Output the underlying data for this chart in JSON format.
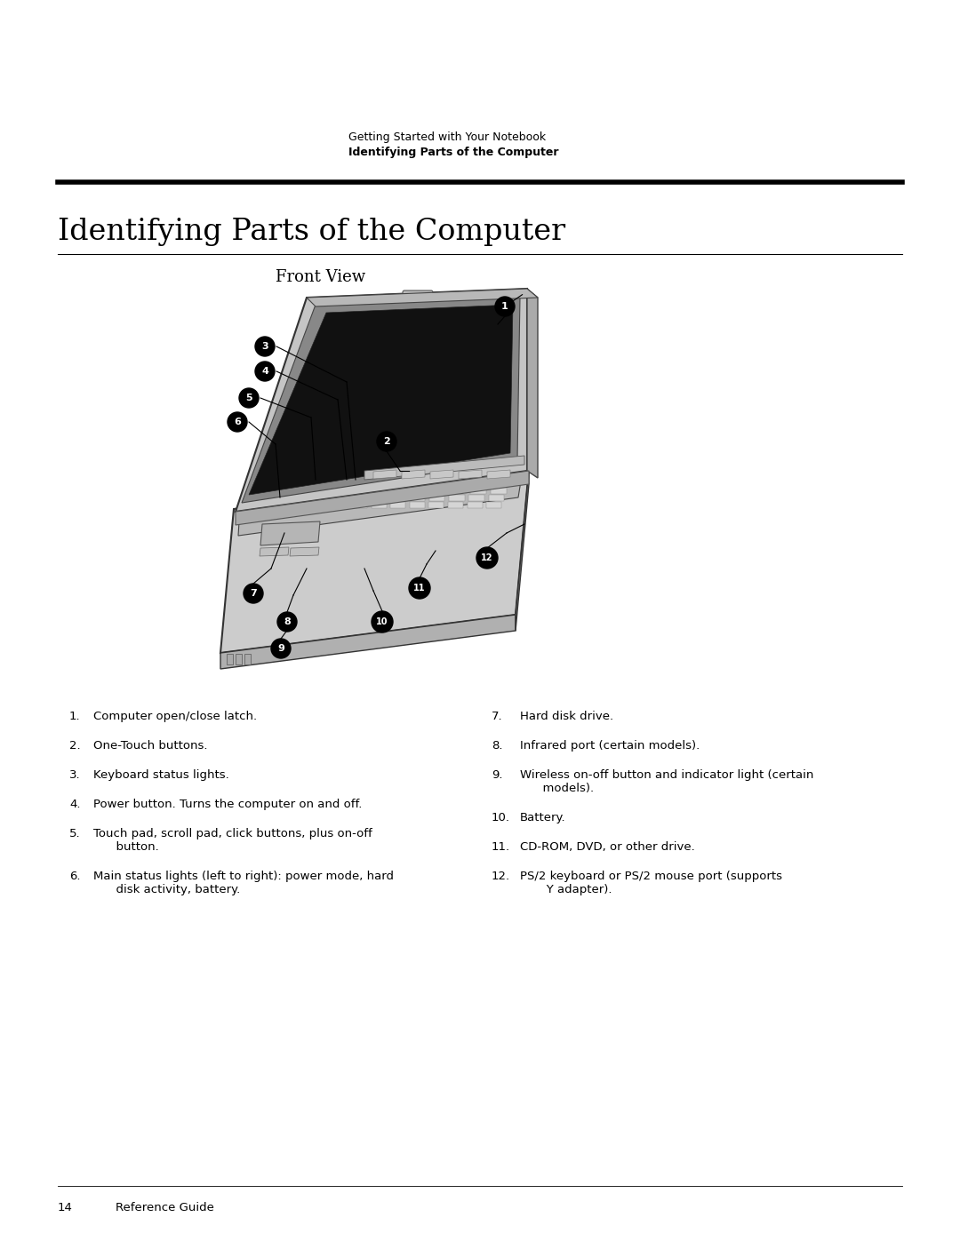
{
  "background_color": "#ffffff",
  "header_line1": "Getting Started with Your Notebook",
  "header_line2": "Identifying Parts of the Computer",
  "page_title": "Identifying Parts of the Computer",
  "section_title": "Front View",
  "footer_page": "14",
  "footer_text": "Reference Guide",
  "left_items": [
    [
      "1.",
      "Computer open/close latch."
    ],
    [
      "2.",
      "One-Touch buttons."
    ],
    [
      "3.",
      "Keyboard status lights."
    ],
    [
      "4.",
      "Power button. Turns the computer on and off."
    ],
    [
      "5.",
      "Touch pad, scroll pad, click buttons, plus on-off",
      "      button."
    ],
    [
      "6.",
      "Main status lights (left to right): power mode, hard",
      "      disk activity, battery."
    ]
  ],
  "right_items": [
    [
      "7.",
      "Hard disk drive."
    ],
    [
      "8.",
      "Infrared port (certain models)."
    ],
    [
      "9.",
      "Wireless on-off button and indicator light (certain",
      "      models)."
    ],
    [
      "10.",
      "Battery."
    ],
    [
      "11.",
      "CD-ROM, DVD, or other drive."
    ],
    [
      "12.",
      "PS/2 keyboard or PS/2 mouse port (supports",
      "       Y adapter)."
    ]
  ]
}
